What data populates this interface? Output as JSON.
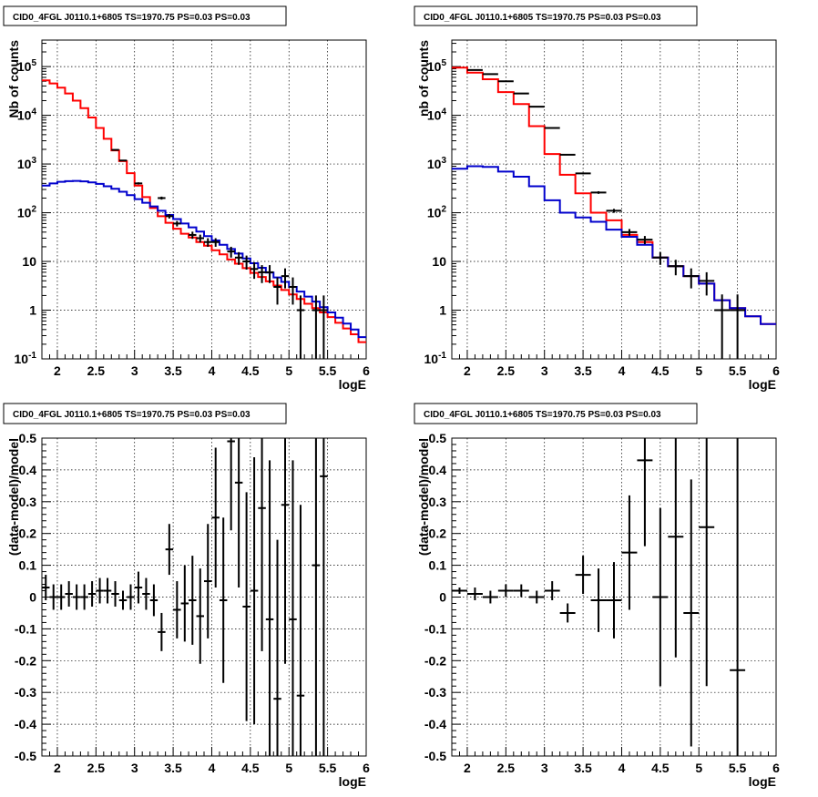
{
  "colors": {
    "total_model": "#ff0000",
    "component_model": "#0000cc",
    "data": "#000000",
    "grid": "#000000"
  },
  "chart_data": [
    {
      "type": "line",
      "panel": "top-left",
      "title": "CID0_4FGL J0110.1+6805 TS=1970.75 PS=0.03 PS=0.03",
      "xlabel": "logE",
      "ylabel": "Nb of counts",
      "xlim": [
        1.8,
        6.0
      ],
      "ylim": [
        0.1,
        350000
      ],
      "yscale": "log",
      "grid": true,
      "xticks": [
        "2",
        "2.5",
        "3",
        "3.5",
        "4",
        "4.5",
        "5",
        "5.5",
        "6"
      ],
      "yticks": [
        "10^-1",
        "1",
        "10",
        "10^2",
        "10^3",
        "10^4",
        "10^5"
      ],
      "edges": [
        1.8,
        1.9,
        2.0,
        2.1,
        2.2,
        2.3,
        2.4,
        2.5,
        2.6,
        2.7,
        2.8,
        2.9,
        3.0,
        3.1,
        3.2,
        3.3,
        3.4,
        3.5,
        3.6,
        3.7,
        3.8,
        3.9,
        4.0,
        4.1,
        4.2,
        4.3,
        4.4,
        4.5,
        4.6,
        4.7,
        4.8,
        4.9,
        5.0,
        5.1,
        5.2,
        5.3,
        5.4,
        5.5,
        5.6,
        5.7,
        5.8,
        5.9,
        6.0
      ],
      "series": [
        {
          "role": "total",
          "style": "step",
          "values": [
            52000,
            45000,
            37000,
            28000,
            20000,
            14000,
            9000,
            5500,
            3300,
            1900,
            1150,
            650,
            360,
            210,
            125,
            85,
            62,
            47,
            37,
            31,
            25,
            21,
            17,
            14,
            11,
            9,
            7.3,
            5.8,
            4.8,
            3.9,
            3.2,
            2.6,
            2.1,
            1.7,
            1.35,
            1.1,
            0.9,
            0.72,
            0.55,
            0.42,
            0.32,
            0.22
          ]
        },
        {
          "role": "component",
          "style": "step",
          "values": [
            360,
            400,
            430,
            445,
            450,
            440,
            420,
            390,
            350,
            310,
            270,
            230,
            190,
            160,
            135,
            110,
            90,
            74,
            60,
            50,
            41,
            33,
            27,
            22,
            18,
            14.5,
            11.5,
            9.2,
            7.4,
            5.9,
            4.7,
            3.8,
            3.0,
            2.4,
            1.9,
            1.5,
            1.15,
            0.9,
            0.7,
            0.53,
            0.4,
            0.28
          ]
        },
        {
          "role": "data",
          "style": "errorbar",
          "x": [
            2.75,
            2.85,
            3.05,
            3.35,
            3.45,
            3.55,
            3.75,
            3.85,
            3.95,
            4.05,
            4.25,
            4.35,
            4.45,
            4.55,
            4.65,
            4.75,
            4.85,
            4.95,
            5.05,
            5.15,
            5.35,
            5.45
          ],
          "y": [
            1950,
            1180,
            400,
            200,
            85,
            60,
            35,
            30,
            25,
            25,
            16,
            12,
            10,
            7,
            6,
            6,
            3,
            5,
            3,
            1,
            1,
            1
          ],
          "yerr_lo": [
            44,
            34,
            20,
            14,
            9,
            7.7,
            5.9,
            5.5,
            5,
            5,
            4,
            3.5,
            3.2,
            2.6,
            2.4,
            2.4,
            1.7,
            2.2,
            1.7,
            0.99,
            0.99,
            0.99
          ],
          "yerr_hi": [
            44,
            34,
            20,
            14,
            9,
            7.7,
            5.9,
            5.5,
            5,
            5,
            4,
            3.5,
            3.2,
            2.6,
            2.4,
            2.4,
            1.7,
            2.2,
            1.7,
            1,
            1,
            1
          ]
        }
      ]
    },
    {
      "type": "line",
      "panel": "top-right",
      "title": "CID0_4FGL J0110.1+6805 TS=1970.75 PS=0.03 PS=0.03",
      "xlabel": "logE",
      "ylabel": "nb of counts",
      "xlim": [
        1.8,
        6.0
      ],
      "ylim": [
        0.1,
        350000
      ],
      "yscale": "log",
      "grid": true,
      "xticks": [
        "2",
        "2.5",
        "3",
        "3.5",
        "4",
        "4.5",
        "5",
        "5.5",
        "6"
      ],
      "yticks": [
        "10^-1",
        "1",
        "10",
        "10^2",
        "10^3",
        "10^4",
        "10^5"
      ],
      "edges": [
        1.8,
        2.0,
        2.2,
        2.4,
        2.6,
        2.8,
        3.0,
        3.2,
        3.4,
        3.6,
        3.8,
        4.0,
        4.2,
        4.4,
        4.6,
        4.8,
        5.0,
        5.2,
        5.4,
        5.6,
        5.8,
        6.0
      ],
      "series": [
        {
          "role": "total",
          "style": "step",
          "values": [
            95000,
            75000,
            55000,
            30000,
            17000,
            6000,
            1600,
            600,
            250,
            100,
            70,
            35,
            25,
            12,
            8,
            5,
            3.5,
            1.6,
            1.1,
            0.75,
            0.52
          ]
        },
        {
          "role": "component",
          "style": "step",
          "values": [
            800,
            900,
            870,
            700,
            550,
            350,
            180,
            100,
            80,
            65,
            45,
            32,
            22,
            12,
            8,
            5,
            3.5,
            1.6,
            1.1,
            0.75,
            0.52
          ]
        },
        {
          "role": "data",
          "style": "errorbar",
          "x": [
            2.1,
            2.3,
            2.5,
            2.7,
            2.9,
            3.1,
            3.3,
            3.5,
            3.7,
            3.9,
            4.1,
            4.3,
            4.5,
            4.7,
            4.9,
            5.1,
            5.3,
            5.5
          ],
          "y": [
            85000,
            70000,
            50000,
            28000,
            15000,
            5500,
            1550,
            640,
            260,
            110,
            40,
            28,
            12,
            8,
            5,
            4,
            1,
            1
          ],
          "yerr_lo": [
            290,
            260,
            220,
            170,
            120,
            75,
            40,
            25,
            16,
            10,
            6.3,
            5.3,
            3.5,
            2.8,
            2.2,
            2,
            0.99,
            0.99
          ],
          "yerr_hi": [
            290,
            260,
            220,
            170,
            120,
            75,
            40,
            25,
            16,
            10,
            6.3,
            5.3,
            3.5,
            2.8,
            2.2,
            2,
            1.1,
            1.1
          ]
        }
      ]
    },
    {
      "type": "scatter",
      "panel": "bottom-left",
      "title": "CID0_4FGL J0110.1+6805 TS=1970.75 PS=0.03 PS=0.03",
      "xlabel": "logE",
      "ylabel": "(data-model)/model",
      "xlim": [
        1.8,
        6.0
      ],
      "ylim": [
        -0.5,
        0.5
      ],
      "yscale": "linear",
      "grid": true,
      "xticks": [
        "2",
        "2.5",
        "3",
        "3.5",
        "4",
        "4.5",
        "5",
        "5.5",
        "6"
      ],
      "yticks": [
        "-0.5",
        "-0.4",
        "-0.3",
        "-0.2",
        "-0.1",
        "0",
        "0.1",
        "0.2",
        "0.3",
        "0.4",
        "0.5"
      ],
      "series": [
        {
          "role": "data",
          "style": "errorbar",
          "xhalf": 0.05,
          "x": [
            1.85,
            1.95,
            2.05,
            2.15,
            2.25,
            2.35,
            2.45,
            2.55,
            2.65,
            2.75,
            2.85,
            2.95,
            3.05,
            3.15,
            3.25,
            3.35,
            3.45,
            3.55,
            3.65,
            3.75,
            3.85,
            3.95,
            4.05,
            4.15,
            4.25,
            4.35,
            4.45,
            4.55,
            4.65,
            4.75,
            4.85,
            4.95,
            5.05,
            5.15,
            5.35,
            5.45
          ],
          "y": [
            0.03,
            0.0,
            0.0,
            0.01,
            0.0,
            0.0,
            0.01,
            0.02,
            0.02,
            0.01,
            -0.01,
            0.0,
            0.03,
            0.01,
            -0.01,
            -0.11,
            0.15,
            -0.04,
            -0.02,
            -0.01,
            -0.06,
            0.05,
            0.25,
            -0.01,
            0.49,
            0.36,
            -0.03,
            0.02,
            0.28,
            -0.07,
            -0.32,
            0.29,
            -0.07,
            -0.31,
            0.1,
            0.38
          ],
          "yerr": [
            0.04,
            0.04,
            0.04,
            0.04,
            0.04,
            0.04,
            0.04,
            0.04,
            0.04,
            0.04,
            0.03,
            0.04,
            0.05,
            0.05,
            0.05,
            0.06,
            0.08,
            0.09,
            0.12,
            0.14,
            0.15,
            0.18,
            0.22,
            0.26,
            0.28,
            0.33,
            0.36,
            0.42,
            0.45,
            0.5,
            0.5,
            0.5,
            0.5,
            0.6,
            0.9,
            0.9
          ]
        }
      ]
    },
    {
      "type": "scatter",
      "panel": "bottom-right",
      "title": "CID0_4FGL J0110.1+6805 TS=1970.75 PS=0.03 PS=0.03",
      "xlabel": "logE",
      "ylabel": "(data-model)/model",
      "xlim": [
        1.8,
        6.0
      ],
      "ylim": [
        -0.5,
        0.5
      ],
      "yscale": "linear",
      "grid": true,
      "xticks": [
        "2",
        "2.5",
        "3",
        "3.5",
        "4",
        "4.5",
        "5",
        "5.5",
        "6"
      ],
      "yticks": [
        "-0.5",
        "-0.4",
        "-0.3",
        "-0.2",
        "-0.1",
        "0",
        "0.1",
        "0.2",
        "0.3",
        "0.4",
        "0.5"
      ],
      "series": [
        {
          "role": "data",
          "style": "errorbar",
          "xhalf": 0.1,
          "x": [
            1.9,
            2.1,
            2.3,
            2.5,
            2.7,
            2.9,
            3.1,
            3.3,
            3.5,
            3.7,
            3.9,
            4.1,
            4.3,
            4.5,
            4.7,
            4.9,
            5.1,
            5.5
          ],
          "y": [
            0.02,
            0.01,
            0.0,
            0.02,
            0.02,
            0.0,
            0.02,
            -0.05,
            0.07,
            -0.01,
            -0.01,
            0.14,
            0.43,
            0.0,
            0.19,
            -0.05,
            0.22,
            -0.23
          ],
          "yerr": [
            0.01,
            0.02,
            0.02,
            0.02,
            0.02,
            0.02,
            0.03,
            0.03,
            0.06,
            0.1,
            0.12,
            0.18,
            0.27,
            0.28,
            0.38,
            0.42,
            0.5,
            1.0
          ]
        }
      ]
    }
  ]
}
